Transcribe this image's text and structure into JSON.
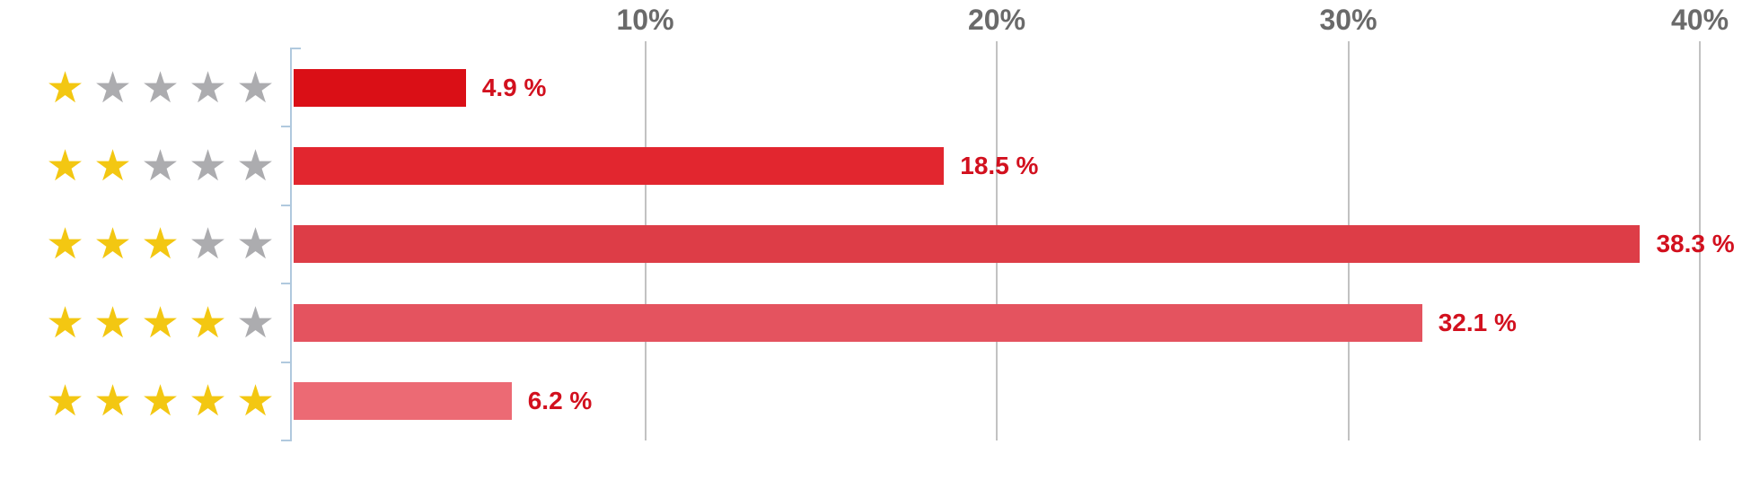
{
  "chart_data": {
    "type": "bar",
    "orientation": "horizontal",
    "title": "",
    "xlabel": "",
    "ylabel": "",
    "categories": [
      "1 star",
      "2 stars",
      "3 stars",
      "4 stars",
      "5 stars"
    ],
    "stars_total": 5,
    "star_ratings": [
      1,
      2,
      3,
      4,
      5
    ],
    "values": [
      4.9,
      18.5,
      38.3,
      32.1,
      6.2
    ],
    "value_labels": [
      "4.9 %",
      "18.5 %",
      "38.3 %",
      "32.1 %",
      "6.2 %"
    ],
    "x_ticks": [
      {
        "value": 10,
        "label": "10%"
      },
      {
        "value": 20,
        "label": "20%"
      },
      {
        "value": 30,
        "label": "30%"
      },
      {
        "value": 40,
        "label": "40%"
      }
    ],
    "xlim": [
      0,
      41.5
    ],
    "grid": true,
    "legend": "none",
    "bar_colors": [
      "#DA0F16",
      "#E2262F",
      "#DD3D47",
      "#E4535F",
      "#EC6A74"
    ],
    "colors": {
      "value_label": "#D2101E",
      "axis_tick_label": "#6A6A6A",
      "gridline": "#C2C2C2",
      "axis_line": "#B0C9DE",
      "star_filled": "#F3C712",
      "star_empty": "#ACACAF"
    },
    "icons": {
      "star_filled": "star-filled-icon",
      "star_empty": "star-empty-icon",
      "glyph": "★"
    }
  }
}
